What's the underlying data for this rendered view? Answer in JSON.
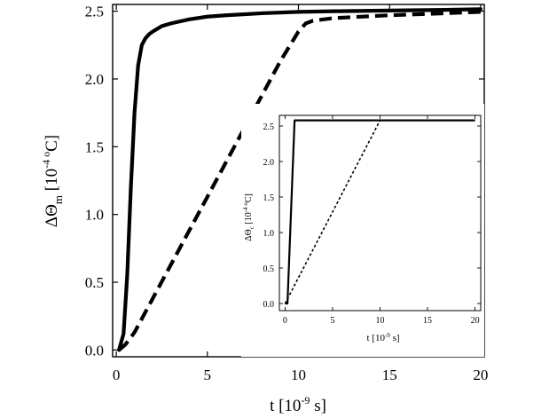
{
  "chart_data": [
    {
      "type": "line",
      "role": "main",
      "xlabel": "t [10",
      "xlabel_exp": "-9",
      "xlabel_unit": " s]",
      "ylabel_prefix": "ΔΘ",
      "ylabel_sub": "m",
      "ylabel_rest": " [10",
      "ylabel_exp": "-4 o",
      "ylabel_unit": "C]",
      "xlim": [
        -0.2,
        20.2
      ],
      "ylim": [
        -0.05,
        2.55
      ],
      "xticks": [
        0,
        5,
        10,
        15,
        20
      ],
      "yticks": [
        0.0,
        0.5,
        1.0,
        1.5,
        2.0,
        2.5
      ],
      "xtick_labels": [
        "0",
        "5",
        "10",
        "15",
        "20"
      ],
      "ytick_labels": [
        "0.0",
        "0.5",
        "1.0",
        "1.5",
        "2.0",
        "2.5"
      ],
      "grid": false,
      "series": [
        {
          "style": "solid",
          "x": [
            0.15,
            0.4,
            0.6,
            0.8,
            1.0,
            1.2,
            1.4,
            1.6,
            1.8,
            2.0,
            2.5,
            3.0,
            4.0,
            5.0,
            6.0,
            8.0,
            10.0,
            12.0,
            15.0,
            18.0,
            20.0
          ],
          "y": [
            0.0,
            0.12,
            0.55,
            1.2,
            1.75,
            2.1,
            2.25,
            2.3,
            2.33,
            2.35,
            2.39,
            2.41,
            2.44,
            2.46,
            2.47,
            2.485,
            2.495,
            2.5,
            2.505,
            2.51,
            2.515
          ]
        },
        {
          "style": "dashed",
          "x": [
            0.15,
            0.5,
            1.0,
            2.0,
            3.0,
            4.0,
            5.0,
            6.0,
            7.0,
            8.0,
            9.0,
            10.0,
            10.4,
            10.8,
            12.0,
            15.0,
            18.0,
            20.0
          ],
          "y": [
            0.0,
            0.04,
            0.13,
            0.38,
            0.63,
            0.88,
            1.13,
            1.38,
            1.63,
            1.88,
            2.13,
            2.35,
            2.41,
            2.43,
            2.45,
            2.47,
            2.485,
            2.495
          ]
        }
      ]
    },
    {
      "type": "line",
      "role": "inset",
      "xlabel": "t [10",
      "xlabel_exp": "-9",
      "xlabel_unit": " s]",
      "ylabel_prefix": "ΔΘ",
      "ylabel_sub": "c",
      "ylabel_rest": " [10",
      "ylabel_exp": "-4 o",
      "ylabel_unit": "C]",
      "xlim": [
        -0.6,
        20.6
      ],
      "ylim": [
        -0.1,
        2.65
      ],
      "xticks": [
        0,
        5,
        10,
        15,
        20
      ],
      "yticks": [
        0.0,
        0.5,
        1.0,
        1.5,
        2.0,
        2.5
      ],
      "xtick_labels": [
        "0",
        "5",
        "10",
        "15",
        "20"
      ],
      "ytick_labels": [
        "0.0",
        "0.5",
        "1.0",
        "1.5",
        "2.0",
        "2.5"
      ],
      "grid": false,
      "series": [
        {
          "style": "solid",
          "x": [
            0.0,
            0.25,
            1.0,
            20.0
          ],
          "y": [
            0.0,
            0.0,
            2.58,
            2.58
          ]
        },
        {
          "style": "dotted",
          "x": [
            0.0,
            10.0,
            20.0
          ],
          "y": [
            0.0,
            2.58,
            2.58
          ]
        }
      ]
    }
  ]
}
